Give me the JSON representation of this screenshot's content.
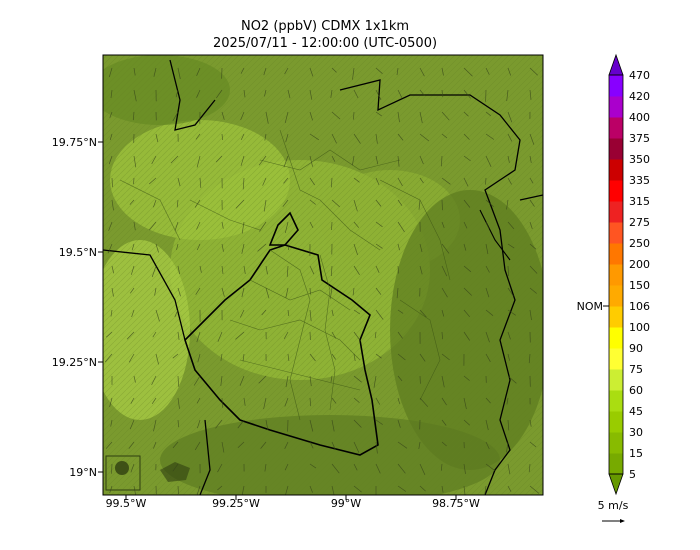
{
  "title": {
    "line1": "NO2 (ppbV) CDMX 1x1km",
    "line2": "2025/07/11 - 12:00:00 (UTC-0500)"
  },
  "axes": {
    "lat_ticks": [
      "19.75°N",
      "19.5°N",
      "19.25°N",
      "19°N"
    ],
    "lon_ticks": [
      "99.5°W",
      "99.25°W",
      "99°W",
      "98.75°W"
    ]
  },
  "colorbar": {
    "levels": [
      "5",
      "15",
      "30",
      "45",
      "60",
      "75",
      "90",
      "100",
      "106",
      "150",
      "200",
      "250",
      "275",
      "315",
      "335",
      "350",
      "375",
      "400",
      "420",
      "470"
    ],
    "colors": [
      "#669900",
      "#77aa00",
      "#88bb00",
      "#99cc00",
      "#aadd11",
      "#ccee33",
      "#ffff33",
      "#ffff00",
      "#ffcc00",
      "#ffaa00",
      "#ff9900",
      "#ff7700",
      "#ff5522",
      "#ee2222",
      "#ff0000",
      "#cc0000",
      "#990033",
      "#bb0066",
      "#aa00cc",
      "#8800ff",
      "#6600cc"
    ],
    "nom_label": "NOM"
  },
  "wind_key": {
    "label": "5 m/s"
  },
  "colors": {
    "map_base": "#7a9a2e",
    "map_light": "#9ec23c",
    "map_dark": "#5c7a20",
    "border": "#000000"
  }
}
